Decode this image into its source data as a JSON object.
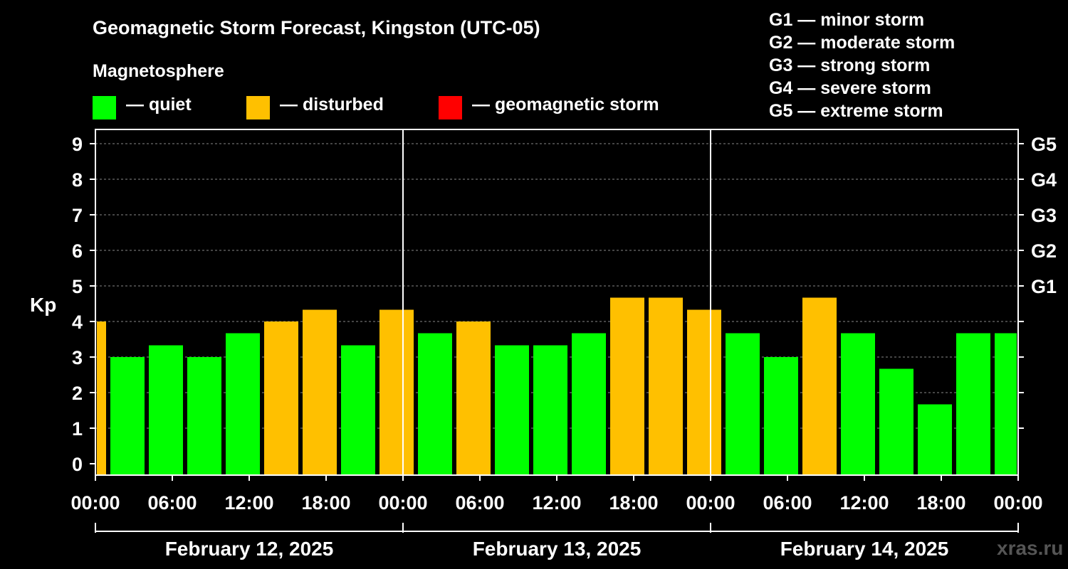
{
  "title": "Geomagnetic Storm Forecast, Kingston (UTC-05)",
  "legend": {
    "heading": "Magnetosphere",
    "items": [
      {
        "label": "— quiet",
        "color": "#00ff00"
      },
      {
        "label": "— disturbed",
        "color": "#ffc000"
      },
      {
        "label": "— geomagnetic storm",
        "color": "#ff0000"
      }
    ]
  },
  "g_scale": [
    {
      "text": "G1 — minor storm"
    },
    {
      "text": "G2 — moderate storm"
    },
    {
      "text": "G3 — strong storm"
    },
    {
      "text": "G4 — severe storm"
    },
    {
      "text": "G5 — extreme storm"
    }
  ],
  "watermark": "xras.ru",
  "chart_data": {
    "type": "bar",
    "title": "Geomagnetic Storm Forecast, Kingston (UTC-05)",
    "ylabel": "Kp",
    "ylim": [
      0,
      9
    ],
    "yticks": [
      "0",
      "1",
      "2",
      "3",
      "4",
      "5",
      "6",
      "7",
      "8",
      "9"
    ],
    "right_ticks": [
      {
        "label": "G1",
        "kp": 5
      },
      {
        "label": "G2",
        "kp": 6
      },
      {
        "label": "G3",
        "kp": 7
      },
      {
        "label": "G4",
        "kp": 8
      },
      {
        "label": "G5",
        "kp": 9
      }
    ],
    "hours_range": [
      0,
      72
    ],
    "xtick_hours": [
      0,
      6,
      12,
      18,
      24,
      30,
      36,
      42,
      48,
      54,
      60,
      66,
      72
    ],
    "xtick_labels": [
      "00:00",
      "06:00",
      "12:00",
      "18:00",
      "00:00",
      "06:00",
      "12:00",
      "18:00",
      "00:00",
      "06:00",
      "12:00",
      "18:00",
      "00:00"
    ],
    "days": [
      "February 12, 2025",
      "February 13, 2025",
      "February 14, 2025"
    ],
    "day_boundaries": [
      24,
      48
    ],
    "bars": [
      {
        "start": 0,
        "end": 1,
        "kp": 4.0,
        "level": "disturbed"
      },
      {
        "start": 1,
        "end": 4,
        "kp": 3.0,
        "level": "quiet"
      },
      {
        "start": 4,
        "end": 7,
        "kp": 3.33,
        "level": "quiet"
      },
      {
        "start": 7,
        "end": 10,
        "kp": 3.0,
        "level": "quiet"
      },
      {
        "start": 10,
        "end": 13,
        "kp": 3.67,
        "level": "quiet"
      },
      {
        "start": 13,
        "end": 16,
        "kp": 4.0,
        "level": "disturbed"
      },
      {
        "start": 16,
        "end": 19,
        "kp": 4.33,
        "level": "disturbed"
      },
      {
        "start": 19,
        "end": 22,
        "kp": 3.33,
        "level": "quiet"
      },
      {
        "start": 22,
        "end": 25,
        "kp": 4.33,
        "level": "disturbed"
      },
      {
        "start": 25,
        "end": 28,
        "kp": 3.67,
        "level": "quiet"
      },
      {
        "start": 28,
        "end": 31,
        "kp": 4.0,
        "level": "disturbed"
      },
      {
        "start": 31,
        "end": 34,
        "kp": 3.33,
        "level": "quiet"
      },
      {
        "start": 34,
        "end": 37,
        "kp": 3.33,
        "level": "quiet"
      },
      {
        "start": 37,
        "end": 40,
        "kp": 3.67,
        "level": "quiet"
      },
      {
        "start": 40,
        "end": 43,
        "kp": 4.67,
        "level": "disturbed"
      },
      {
        "start": 43,
        "end": 46,
        "kp": 4.67,
        "level": "disturbed"
      },
      {
        "start": 46,
        "end": 49,
        "kp": 4.33,
        "level": "disturbed"
      },
      {
        "start": 49,
        "end": 52,
        "kp": 3.67,
        "level": "quiet"
      },
      {
        "start": 52,
        "end": 55,
        "kp": 3.0,
        "level": "quiet"
      },
      {
        "start": 55,
        "end": 58,
        "kp": 4.67,
        "level": "disturbed"
      },
      {
        "start": 58,
        "end": 61,
        "kp": 3.67,
        "level": "quiet"
      },
      {
        "start": 61,
        "end": 64,
        "kp": 2.67,
        "level": "quiet"
      },
      {
        "start": 64,
        "end": 67,
        "kp": 1.67,
        "level": "quiet"
      },
      {
        "start": 67,
        "end": 70,
        "kp": 3.67,
        "level": "quiet"
      },
      {
        "start": 70,
        "end": 72,
        "kp": 3.67,
        "level": "quiet"
      }
    ],
    "colors": {
      "quiet": "#00ff00",
      "disturbed": "#ffc000",
      "storm": "#ff0000",
      "grid": "#888888",
      "axis": "#ffffff"
    }
  }
}
